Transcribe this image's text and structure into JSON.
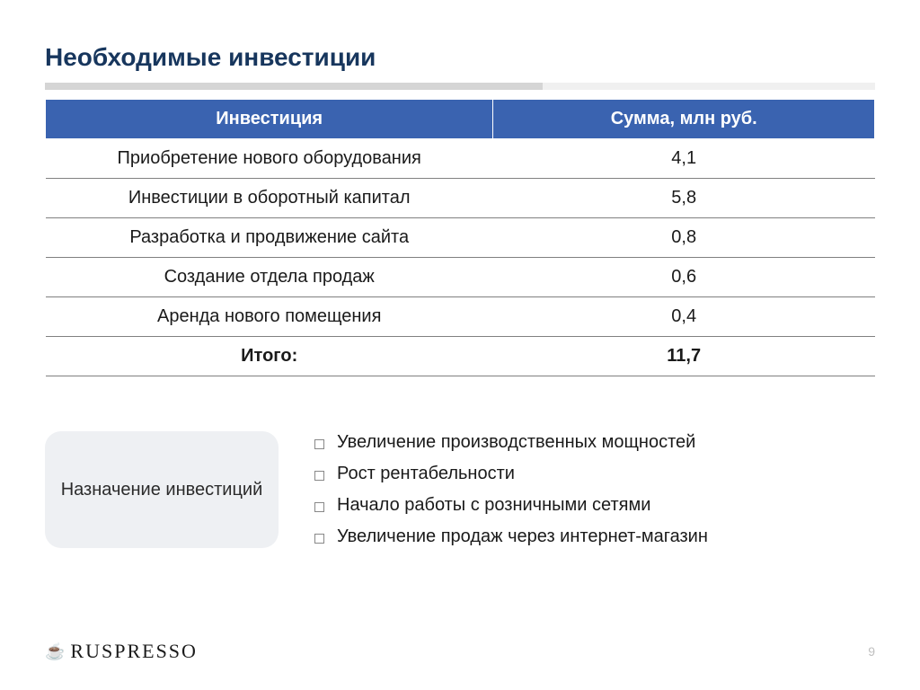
{
  "slide": {
    "title": "Необходимые инвестиции",
    "colors": {
      "title": "#17365d",
      "header_bg": "#3a63b0",
      "header_text": "#ffffff",
      "row_border": "#808080",
      "callout_bg": "#eef0f3",
      "divider_dark": "#d5d5d5",
      "divider_light": "#f0f0f0",
      "pagenum": "#bfbfbf",
      "text": "#1a1a1a"
    }
  },
  "table": {
    "columns": [
      "Инвестиция",
      "Сумма, млн руб."
    ],
    "rows": [
      {
        "name": "Приобретение нового оборудования",
        "sum": "4,1"
      },
      {
        "name": "Инвестиции в оборотный капитал",
        "sum": "5,8"
      },
      {
        "name": "Разработка и продвижение сайта",
        "sum": "0,8"
      },
      {
        "name": "Создание отдела продаж",
        "sum": "0,6"
      },
      {
        "name": "Аренда нового помещения",
        "sum": "0,4"
      }
    ],
    "total": {
      "name": "Итого:",
      "sum": "11,7"
    },
    "col_widths_pct": [
      54,
      46
    ],
    "fontsize": 20
  },
  "callout": {
    "label": "Назначение инвестиций",
    "fontsize": 20,
    "border_radius": 18
  },
  "bullets": {
    "items": [
      "Увеличение производственных мощностей",
      "Рост рентабельности",
      "Начало работы с розничными сетями",
      "Увеличение продаж через интернет-магазин"
    ],
    "fontsize": 20
  },
  "footer": {
    "logo_text": "RUSPRESSO",
    "logo_icon": "☕",
    "page_number": "9"
  }
}
